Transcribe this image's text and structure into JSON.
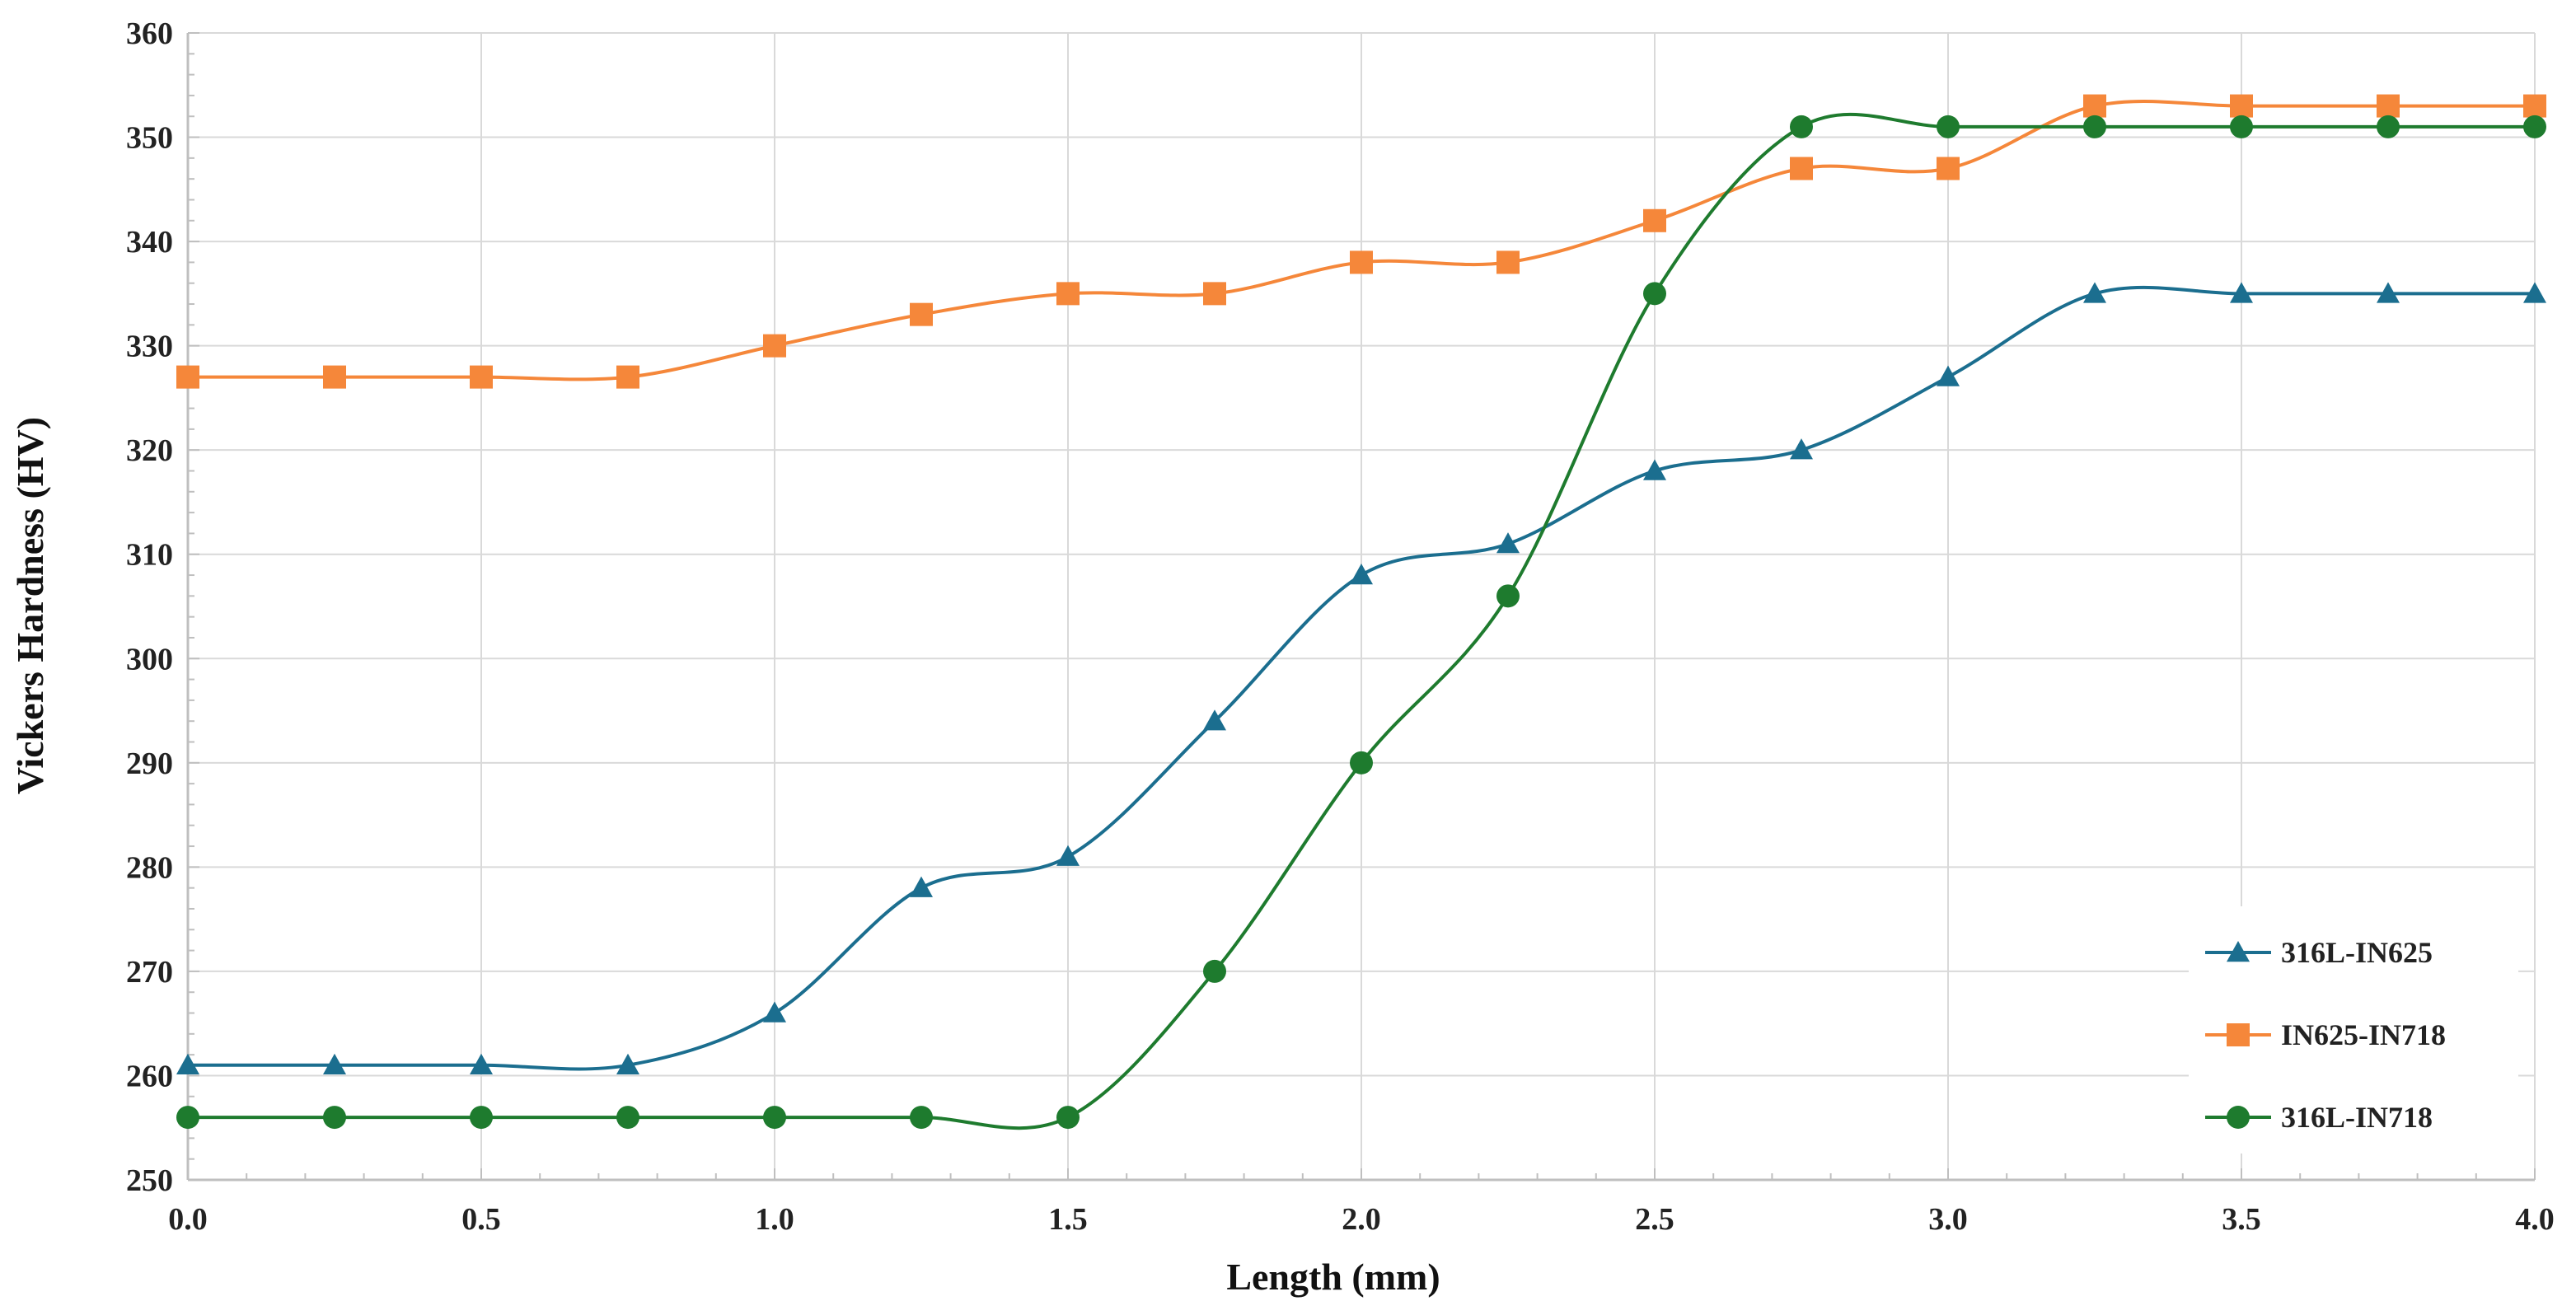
{
  "chart_data": {
    "type": "line",
    "title": "",
    "xlabel": "Length (mm)",
    "ylabel": "Vickers Hardness (HV)",
    "xlim": [
      0.0,
      4.0
    ],
    "ylim": [
      250,
      360
    ],
    "x_ticks": [
      0.0,
      0.5,
      1.0,
      1.5,
      2.0,
      2.5,
      3.0,
      3.5,
      4.0
    ],
    "x_tick_labels": [
      "0.0",
      "0.5",
      "1.0",
      "1.5",
      "2.0",
      "2.5",
      "3.0",
      "3.5",
      "4.0"
    ],
    "y_ticks": [
      250,
      260,
      270,
      280,
      290,
      300,
      310,
      320,
      330,
      340,
      350,
      360
    ],
    "y_tick_labels": [
      "250",
      "260",
      "270",
      "280",
      "290",
      "300",
      "310",
      "320",
      "330",
      "340",
      "350",
      "360"
    ],
    "grid": true,
    "smooth_lines": true,
    "legend_position": "bottom-right",
    "x": [
      0.0,
      0.25,
      0.5,
      0.75,
      1.0,
      1.25,
      1.5,
      1.75,
      2.0,
      2.25,
      2.5,
      2.75,
      3.0,
      3.25,
      3.5,
      3.75,
      4.0
    ],
    "series": [
      {
        "name": "316L-IN625",
        "color": "#1b6e8f",
        "marker": "triangle",
        "values": [
          261,
          261,
          261,
          261,
          266,
          278,
          281,
          294,
          308,
          311,
          318,
          320,
          327,
          335,
          335,
          335,
          335
        ]
      },
      {
        "name": "IN625-IN718",
        "color": "#f5873a",
        "marker": "square",
        "values": [
          327,
          327,
          327,
          327,
          330,
          333,
          335,
          335,
          338,
          338,
          342,
          347,
          347,
          353,
          353,
          353,
          353
        ]
      },
      {
        "name": "316L-IN718",
        "color": "#1e7b2e",
        "marker": "circle",
        "values": [
          256,
          256,
          256,
          256,
          256,
          256,
          256,
          270,
          290,
          306,
          335,
          351,
          351,
          351,
          351,
          351,
          351
        ]
      }
    ]
  }
}
